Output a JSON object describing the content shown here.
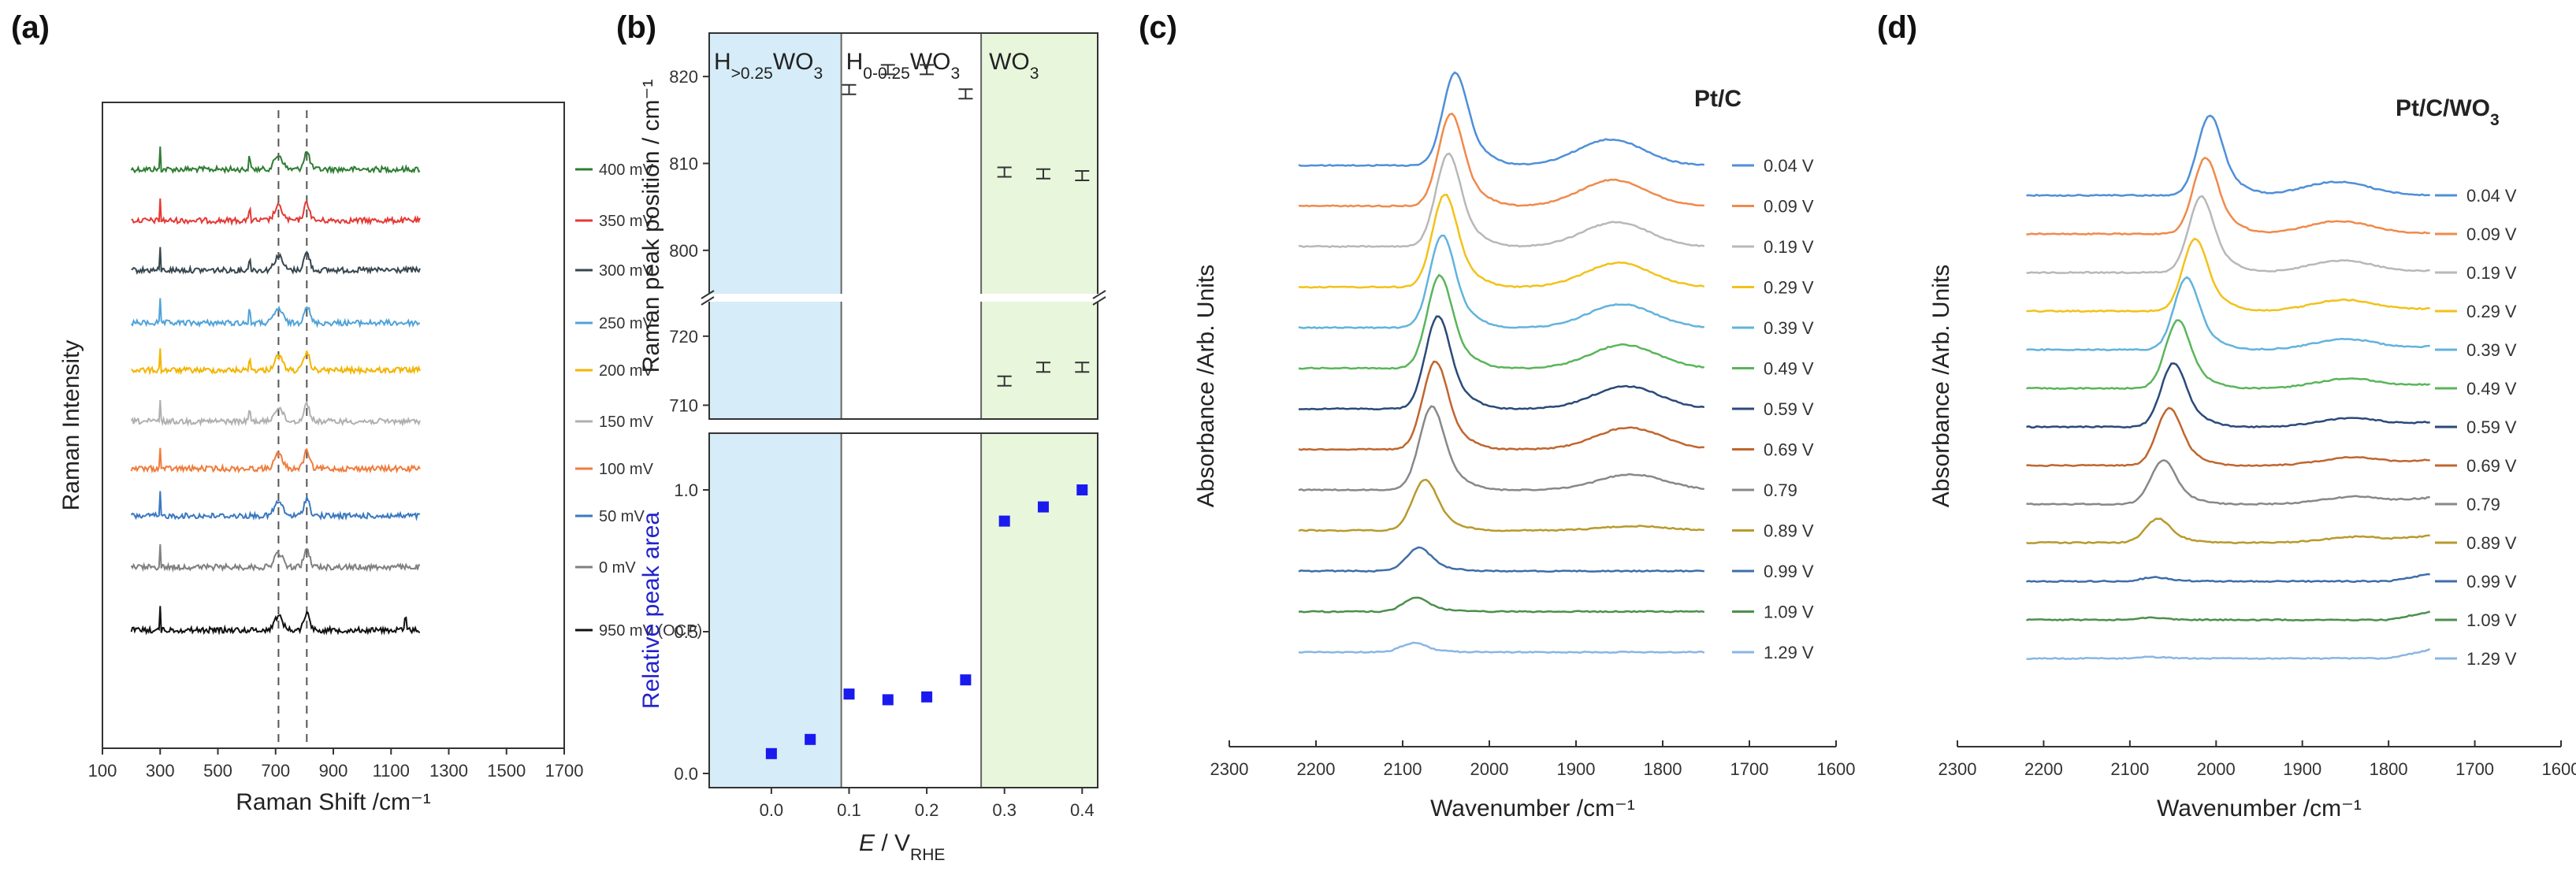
{
  "chart_data": [
    {
      "panel": "(a)",
      "type": "line",
      "title": "",
      "xlabel": "Raman Shift /cm⁻¹",
      "ylabel": "Raman Intensity",
      "xlim": [
        100,
        1700
      ],
      "xticks": [
        100,
        300,
        500,
        700,
        900,
        1100,
        1300,
        1500,
        1700
      ],
      "tick_labels": [
        "100",
        "300",
        "500",
        "700",
        "900",
        "1100",
        "1300",
        "1500",
        "1700"
      ],
      "dashed_lines_x": [
        710,
        808
      ],
      "series": [
        {
          "name": "400 mV",
          "color": "#2e7d32"
        },
        {
          "name": "350 mV",
          "color": "#e53935"
        },
        {
          "name": "300 mV",
          "color": "#37474f"
        },
        {
          "name": "250 mV",
          "color": "#4fa3d9"
        },
        {
          "name": "200 mV",
          "color": "#f4b400"
        },
        {
          "name": "150 mV",
          "color": "#b0b0b0"
        },
        {
          "name": "100 mV",
          "color": "#f07c3c"
        },
        {
          "name": "50 mV",
          "color": "#3a78c0"
        },
        {
          "name": "0 mV",
          "color": "#808080"
        },
        {
          "name": "950 mV (OCP)",
          "color": "#111111"
        }
      ]
    },
    {
      "panel": "(b)",
      "type": "scatter",
      "xlabel_main": "E",
      "xlabel_sub": "V",
      "xlabel_subsub": "RHE",
      "xlim": [
        -0.08,
        0.42
      ],
      "xticks": [
        0.0,
        0.1,
        0.2,
        0.3,
        0.4
      ],
      "xtick_labels": [
        "0.0",
        "0.1",
        "0.2",
        "0.3",
        "0.4"
      ],
      "regions": [
        {
          "label_main": "H",
          "label_sub": ">0.25",
          "label_tail": "WO",
          "label_tail_sub": "3",
          "color": "#d6ecf8"
        },
        {
          "label_main": "H",
          "label_sub": "0-0.25",
          "label_tail": "WO",
          "label_tail_sub": "3",
          "color": "#ffffff"
        },
        {
          "label_main": "WO",
          "label_sub": "3",
          "label_tail": "",
          "label_tail_sub": "",
          "color": "#e8f6dc"
        }
      ],
      "top": {
        "ylabel": "Raman peak position / cm⁻¹",
        "upper_ylim": [
          795,
          825
        ],
        "lower_ylim": [
          708,
          725
        ],
        "upper_yticks": [
          "800",
          "810",
          "820"
        ],
        "lower_yticks": [
          "710",
          "720"
        ],
        "peak_high": {
          "x": [
            0.1,
            0.15,
            0.2,
            0.25,
            0.3,
            0.35,
            0.4
          ],
          "y": [
            818.5,
            820.8,
            820.8,
            818.0,
            809.0,
            808.8,
            808.6
          ]
        },
        "peak_low": {
          "x": [
            0.3,
            0.35,
            0.4
          ],
          "y": [
            713.5,
            715.5,
            715.5
          ]
        }
      },
      "bottom": {
        "ylabel": "Relative peak area",
        "ylim": [
          -0.05,
          1.2
        ],
        "yticks": [
          "0.0",
          "0.5",
          "1.0"
        ],
        "x": [
          0.0,
          0.05,
          0.1,
          0.15,
          0.2,
          0.25,
          0.3,
          0.35,
          0.4
        ],
        "y": [
          0.07,
          0.12,
          0.28,
          0.26,
          0.27,
          0.33,
          0.89,
          0.94,
          1.0
        ]
      }
    },
    {
      "panel": "(c)",
      "type": "line",
      "title": "Pt/C",
      "xlabel": "Wavenumber /cm⁻¹",
      "ylabel": "Absorbance /Arb. Units",
      "xlim": [
        2300,
        1600
      ],
      "xticks": [
        "2300",
        "2200",
        "2100",
        "2000",
        "1900",
        "1800",
        "1700",
        "1600"
      ],
      "series": [
        {
          "name": "0.04 V",
          "color": "#4f8fd8",
          "peak": 2040,
          "amp": 1.0,
          "bridge": 0.3
        },
        {
          "name": "0.09 V",
          "color": "#f08a4b",
          "peak": 2045,
          "amp": 1.0,
          "bridge": 0.3
        },
        {
          "name": "0.19 V",
          "color": "#b8b8b8",
          "peak": 2048,
          "amp": 1.0,
          "bridge": 0.28
        },
        {
          "name": "0.29 V",
          "color": "#f2c21a",
          "peak": 2052,
          "amp": 1.0,
          "bridge": 0.28
        },
        {
          "name": "0.39 V",
          "color": "#62b3dc",
          "peak": 2055,
          "amp": 1.0,
          "bridge": 0.27
        },
        {
          "name": "0.49 V",
          "color": "#5ab55a",
          "peak": 2058,
          "amp": 1.0,
          "bridge": 0.27
        },
        {
          "name": "0.59 V",
          "color": "#2b4a7a",
          "peak": 2060,
          "amp": 1.0,
          "bridge": 0.26
        },
        {
          "name": "0.69 V",
          "color": "#c0662f",
          "peak": 2063,
          "amp": 0.95,
          "bridge": 0.25
        },
        {
          "name": "0.79",
          "color": "#888888",
          "peak": 2067,
          "amp": 0.9,
          "bridge": 0.18
        },
        {
          "name": "0.89 V",
          "color": "#b89a2c",
          "peak": 2075,
          "amp": 0.55,
          "bridge": 0.05
        },
        {
          "name": "0.99 V",
          "color": "#3f6ea8",
          "peak": 2082,
          "amp": 0.25,
          "bridge": 0.0
        },
        {
          "name": "1.09 V",
          "color": "#4d8f4d",
          "peak": 2085,
          "amp": 0.15,
          "bridge": 0.0
        },
        {
          "name": "1.29 V",
          "color": "#89b6e4",
          "peak": 2088,
          "amp": 0.1,
          "bridge": 0.0
        }
      ]
    },
    {
      "panel": "(d)",
      "type": "line",
      "title_main": "Pt/C/WO",
      "title_sub": "3",
      "xlabel": "Wavenumber /cm⁻¹",
      "ylabel": "Absorbance /Arb. Units",
      "xlim": [
        2300,
        1600
      ],
      "xticks": [
        "2300",
        "2200",
        "2100",
        "2000",
        "1900",
        "1800",
        "1700",
        "1600"
      ],
      "series": [
        {
          "name": "0.04 V",
          "color": "#4f8fd8",
          "peak": 2008,
          "amp": 1.0,
          "bridge": 0.18
        },
        {
          "name": "0.09 V",
          "color": "#f08a4b",
          "peak": 2013,
          "amp": 0.95,
          "bridge": 0.17
        },
        {
          "name": "0.19 V",
          "color": "#b8b8b8",
          "peak": 2018,
          "amp": 0.95,
          "bridge": 0.16
        },
        {
          "name": "0.29 V",
          "color": "#f2c21a",
          "peak": 2025,
          "amp": 0.9,
          "bridge": 0.15
        },
        {
          "name": "0.39 V",
          "color": "#62b3dc",
          "peak": 2035,
          "amp": 0.9,
          "bridge": 0.14
        },
        {
          "name": "0.49 V",
          "color": "#5ab55a",
          "peak": 2045,
          "amp": 0.85,
          "bridge": 0.13
        },
        {
          "name": "0.59 V",
          "color": "#2b4a7a",
          "peak": 2050,
          "amp": 0.8,
          "bridge": 0.12
        },
        {
          "name": "0.69 V",
          "color": "#c0662f",
          "peak": 2055,
          "amp": 0.72,
          "bridge": 0.11
        },
        {
          "name": "0.79",
          "color": "#888888",
          "peak": 2062,
          "amp": 0.55,
          "bridge": 0.1
        },
        {
          "name": "0.89 V",
          "color": "#b89a2c",
          "peak": 2068,
          "amp": 0.3,
          "bridge": 0.08
        },
        {
          "name": "0.99 V",
          "color": "#3f6ea8",
          "peak": 2072,
          "amp": 0.05,
          "bridge": 0.0
        },
        {
          "name": "1.09 V",
          "color": "#4d8f4d",
          "peak": 2075,
          "amp": 0.03,
          "bridge": 0.0
        },
        {
          "name": "1.29 V",
          "color": "#89b6e4",
          "peak": 2078,
          "amp": 0.02,
          "bridge": 0.0
        }
      ]
    }
  ]
}
